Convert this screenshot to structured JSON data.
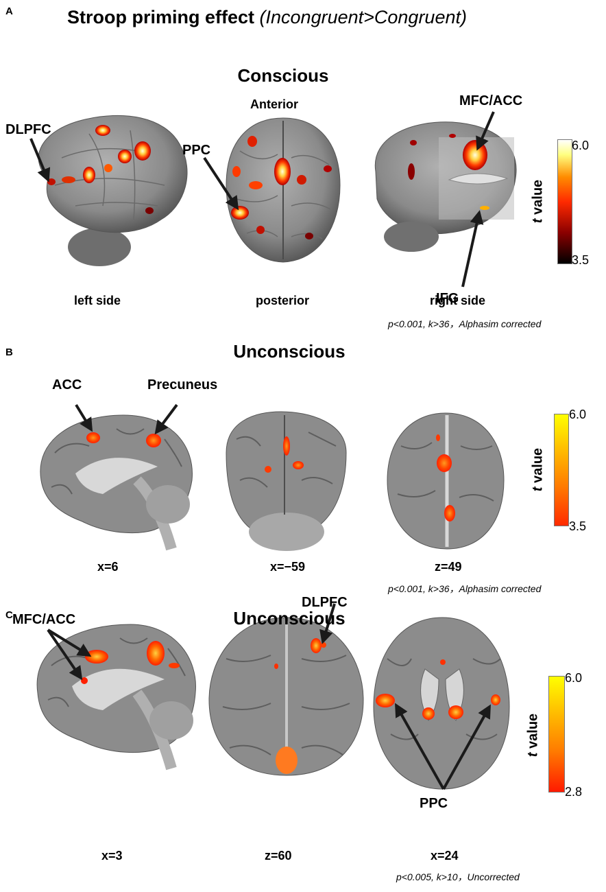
{
  "title": {
    "letter": "A",
    "main": "Stroop priming effect",
    "sub": "(Incongruent>Congruent)"
  },
  "panel_a": {
    "letter": "A",
    "heading": "Conscious",
    "orientation_top": "Anterior",
    "views": [
      "left side",
      "posterior",
      "right side"
    ],
    "regions": [
      "DLPFC",
      "PPC",
      "MFC/ACC",
      "IFG"
    ],
    "stats": "p<0.001,  k>36，Alphasim corrected",
    "colorbar": {
      "max": "6.0",
      "min": "3.5",
      "label_italic": "t",
      "label": " value",
      "colors": [
        "#000000",
        "#8b0000",
        "#ff2a00",
        "#ff8c00",
        "#ffff80",
        "#ffffff"
      ]
    }
  },
  "panel_b": {
    "letter": "B",
    "heading": "Unconscious",
    "coords": [
      "x=6",
      "x=−59",
      "z=49"
    ],
    "regions": [
      "ACC",
      "Precuneus"
    ],
    "stats": "p<0.001,  k>36，Alphasim corrected",
    "colorbar": {
      "max": "6.0",
      "min": "3.5",
      "label_italic": "t",
      "label": " value",
      "colors": [
        "#ff2a00",
        "#ff7a00",
        "#ffc000",
        "#ffff00"
      ]
    }
  },
  "panel_c": {
    "letter": "C",
    "heading": "Unconscious",
    "coords": [
      "x=3",
      "z=60",
      "x=24"
    ],
    "regions": [
      "MFC/ACC",
      "DLPFC",
      "PPC"
    ],
    "stats": "p<0.005,  k>10，Uncorrected",
    "colorbar": {
      "max": "6.0",
      "min": "2.8",
      "label_italic": "t",
      "label": " value",
      "colors": [
        "#ff1a00",
        "#ff7a00",
        "#ffc000",
        "#ffff00"
      ]
    }
  }
}
